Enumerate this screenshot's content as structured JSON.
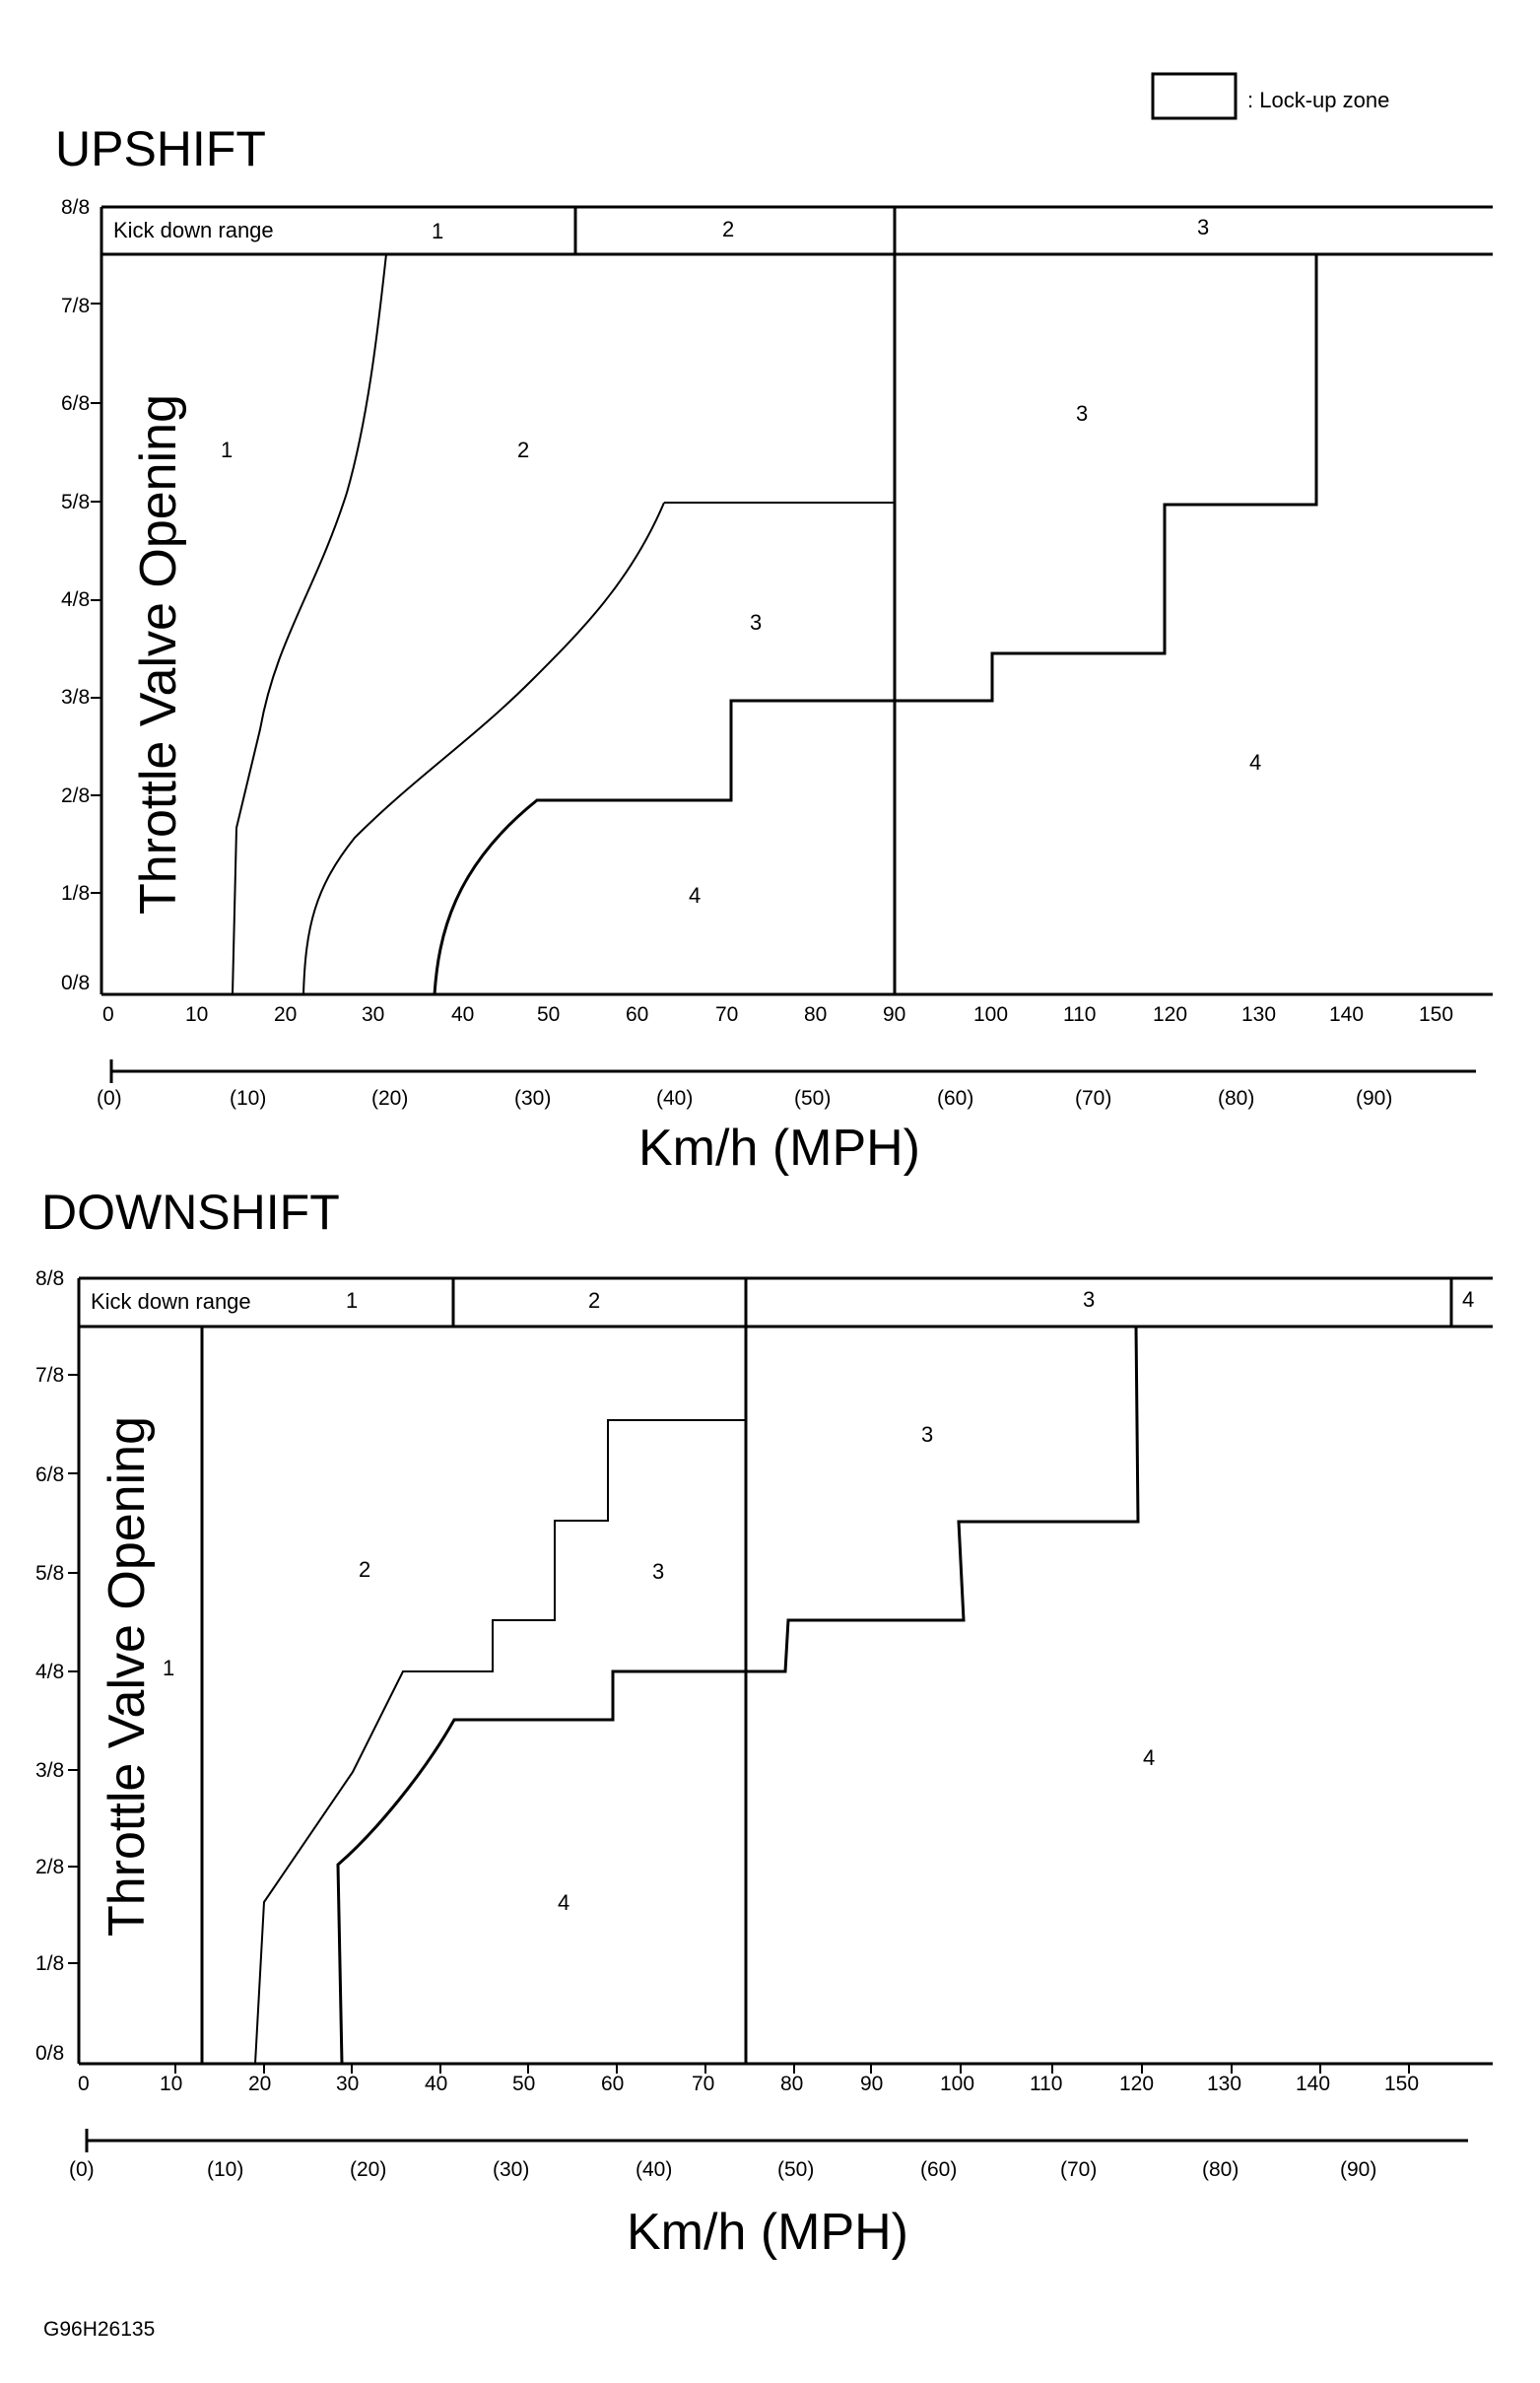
{
  "legend": {
    "label": ": Lock-up zone"
  },
  "upshift": {
    "title": "UPSHIFT",
    "y_axis_label": "Throttle Valve Opening",
    "x_axis_label": "Km/h (MPH)",
    "y_ticks": [
      "0/8",
      "1/8",
      "2/8",
      "3/8",
      "4/8",
      "5/8",
      "6/8",
      "7/8",
      "8/8"
    ],
    "kmh_ticks": [
      "0",
      "10",
      "20",
      "30",
      "40",
      "50",
      "60",
      "70",
      "80",
      "90",
      "100",
      "110",
      "120",
      "130",
      "140",
      "150"
    ],
    "mph_ticks": [
      "(0)",
      "(10)",
      "(20)",
      "(30)",
      "(40)",
      "(50)",
      "(60)",
      "(70)",
      "(80)",
      "(90)"
    ],
    "kickdown": {
      "label": "Kick down range",
      "gears": [
        "1",
        "2",
        "3"
      ]
    },
    "zones": [
      "1",
      "2",
      "3",
      "3",
      "4",
      "4"
    ]
  },
  "downshift": {
    "title": "DOWNSHIFT",
    "y_axis_label": "Throttle Valve Opening",
    "x_axis_label": "Km/h (MPH)",
    "y_ticks": [
      "0/8",
      "1/8",
      "2/8",
      "3/8",
      "4/8",
      "5/8",
      "6/8",
      "7/8",
      "8/8"
    ],
    "kmh_ticks": [
      "0",
      "10",
      "20",
      "30",
      "40",
      "50",
      "60",
      "70",
      "80",
      "90",
      "100",
      "110",
      "120",
      "130",
      "140",
      "150"
    ],
    "mph_ticks": [
      "(0)",
      "(10)",
      "(20)",
      "(30)",
      "(40)",
      "(50)",
      "(60)",
      "(70)",
      "(80)",
      "(90)"
    ],
    "kickdown": {
      "label": "Kick down range",
      "gears": [
        "1",
        "2",
        "3",
        "4"
      ]
    },
    "zones": [
      "1",
      "2",
      "3",
      "3",
      "4",
      "4"
    ]
  },
  "figure_code": "G96H26135"
}
